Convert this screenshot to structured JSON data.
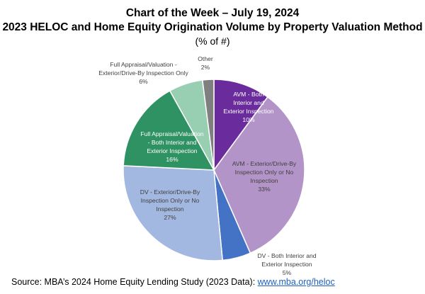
{
  "header": {
    "title": "Chart of the Week – July 19, 2024",
    "subtitle": "2023 HELOC and Home Equity Origination Volume by Property Valuation Method",
    "unit": "(% of #)"
  },
  "labels": {
    "avm_both": {
      "l1": "AVM - Both",
      "l2": "Interior and",
      "l3": "Exterior Inspection",
      "pct": "10%"
    },
    "avm_ext": {
      "l1": "AVM - Exterior/Drive-By",
      "l2": "Inspection Only or No",
      "l3": "Inspection",
      "pct": "33%"
    },
    "dv_both": {
      "l1": "DV - Both Interior and",
      "l2": "Exterior Inspection",
      "pct": "5%"
    },
    "dv_ext": {
      "l1": "DV - Exterior/Drive-By",
      "l2": "Inspection Only or No",
      "l3": "Inspection",
      "pct": "27%"
    },
    "fa_both": {
      "l1": "Full Appraisal/Valuation",
      "l2": "- Both Interior and",
      "l3": "Exterior Inspection",
      "pct": "16%"
    },
    "fa_ext": {
      "l1": "Full Appraisal/Valuation -",
      "l2": "Exterior/Drive-By Inspection Only",
      "pct": "6%"
    },
    "other": {
      "l1": "Other",
      "pct": "2%"
    }
  },
  "footer": {
    "source_text": "Source: MBA’s 2024 Home Equity Lending Study (2023 Data): ",
    "link_text": "www.mba.org/heloc"
  },
  "chart_data": {
    "type": "pie",
    "title": "Chart of the Week – July 19, 2024",
    "subtitle": "2023 HELOC and Home Equity Origination Volume by Property Valuation Method (% of #)",
    "start_angle": "12 o'clock",
    "direction": "clockwise",
    "categories": [
      "AVM - Both Interior and Exterior Inspection",
      "AVM - Exterior/Drive-By Inspection Only or No Inspection",
      "DV - Both Interior and Exterior Inspection",
      "DV - Exterior/Drive-By Inspection Only or No Inspection",
      "Full Appraisal/Valuation - Both Interior and Exterior Inspection",
      "Full Appraisal/Valuation - Exterior/Drive-By Inspection Only",
      "Other"
    ],
    "values": [
      10,
      33,
      5,
      27,
      16,
      6,
      2
    ],
    "colors": [
      "#6a2c9c",
      "#b394c8",
      "#4472c4",
      "#a3b8e0",
      "#2f9262",
      "#98ceb2",
      "#7f7f7f"
    ],
    "legend": "none (data labels)",
    "source": "MBA’s 2024 Home Equity Lending Study (2023 Data)"
  }
}
